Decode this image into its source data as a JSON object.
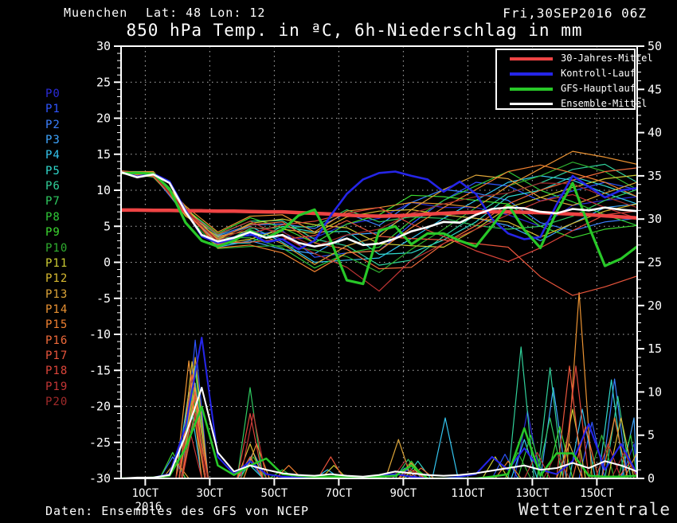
{
  "header": {
    "station": "Muenchen",
    "latlon": "Lat: 48 Lon: 12",
    "run_datetime": "Fri,30SEP2016 06Z",
    "title": "850 hPa Temp. in ªC, 6h-Niederschlag in mm"
  },
  "footer": {
    "source": "Daten: Ensembles des GFS von NCEP",
    "brand": "Wetterzentrale"
  },
  "legend": [
    {
      "label": "30-Jahres-Mittel",
      "color": "#ee4444"
    },
    {
      "label": "Kontroll-Lauf",
      "color": "#2525e8"
    },
    {
      "label": "GFS-Hauptlauf",
      "color": "#28c828"
    },
    {
      "label": "Ensemble-Mittel",
      "color": "#ffffff"
    }
  ],
  "colors": {
    "background": "#000000",
    "frame": "#ffffff",
    "grid": "#b4b4b4"
  },
  "chart_data": {
    "type": "line",
    "title": "850 hPa Temp. in ªC, 6h-Niederschlag in mm",
    "x_axis": {
      "tick_labels": [
        "1OCT",
        "3OCT",
        "5OCT",
        "7OCT",
        "9OCT",
        "11OCT",
        "13OCT",
        "15OCT"
      ],
      "tick_days": [
        0.75,
        2.75,
        4.75,
        6.75,
        8.75,
        10.75,
        12.75,
        14.75
      ],
      "year_label": "2016",
      "range_days": [
        0,
        16
      ],
      "grid": "dotted"
    },
    "y_left": {
      "unit": "Temp ªC",
      "min": -30,
      "max": 30,
      "major_step": 5,
      "minor_step": 1
    },
    "y_right": {
      "unit": "Niederschlag mm",
      "min": 0,
      "max": 50,
      "major_step": 5,
      "minor_step": 1
    },
    "time_days": [
      0,
      0.5,
      1,
      1.5,
      2,
      2.5,
      3,
      3.5,
      4,
      4.5,
      5,
      5.5,
      6,
      6.5,
      7,
      7.5,
      8,
      8.5,
      9,
      9.5,
      10,
      10.5,
      11,
      11.5,
      12,
      12.5,
      13,
      13.5,
      14,
      14.5,
      15,
      15.5,
      16
    ],
    "series_main": [
      {
        "name": "30-Jahres-Mittel",
        "color": "#ee4444",
        "width": 4.5,
        "temp": [
          7.25,
          7.25,
          7.2,
          7.2,
          7.15,
          7.15,
          7.1,
          7.1,
          7.05,
          7.0,
          7.0,
          6.9,
          6.8,
          6.7,
          6.55,
          6.45,
          6.4,
          6.45,
          6.55,
          6.7,
          6.8,
          6.9,
          6.95,
          7.0,
          7.0,
          6.95,
          6.9,
          6.8,
          6.7,
          6.6,
          6.45,
          6.3,
          6.15
        ],
        "precip": null
      },
      {
        "name": "Kontroll-Lauf",
        "color": "#2525e8",
        "width": 2.6,
        "temp": [
          12.5,
          11.9,
          12.3,
          11.2,
          7.2,
          3.6,
          2.7,
          3.2,
          4.0,
          2.8,
          3.2,
          1.8,
          3.0,
          6.5,
          9.5,
          11.5,
          12.4,
          12.6,
          12.0,
          11.5,
          9.8,
          11.2,
          9.5,
          6.0,
          4.0,
          3.2,
          3.5,
          8.0,
          12.0,
          10.5,
          9.0,
          10.0,
          10.3
        ],
        "precip": [
          0,
          0,
          0.1,
          0.5,
          6.0,
          16.3,
          2.5,
          0.5,
          2.0,
          0.5,
          0.2,
          0.1,
          0,
          0.2,
          0,
          0,
          0.3,
          0.5,
          0.2,
          0,
          0,
          0.2,
          0.5,
          2.5,
          1.0,
          3.5,
          1.0,
          0.5,
          2.0,
          6.3,
          1.0,
          4.0,
          0.5
        ]
      },
      {
        "name": "GFS-Hauptlauf",
        "color": "#28c828",
        "width": 3.2,
        "temp": [
          12.4,
          12.4,
          12.3,
          10.2,
          5.5,
          3.0,
          2.2,
          3.0,
          4.4,
          3.4,
          4.5,
          6.5,
          7.3,
          3.0,
          -2.5,
          -3.0,
          4.4,
          5.0,
          2.5,
          4.0,
          4.0,
          3.0,
          2.2,
          5.0,
          8.0,
          4.5,
          2.0,
          7.0,
          11.0,
          5.0,
          -0.5,
          0.5,
          2.2
        ],
        "precip": [
          0,
          0,
          0.1,
          0.3,
          3.5,
          8.3,
          1.5,
          0.4,
          1.5,
          2.3,
          0.5,
          0.3,
          0.2,
          0.2,
          0.2,
          0.1,
          0.2,
          0.3,
          1.5,
          0,
          0,
          0,
          0,
          0.2,
          0.5,
          5.8,
          0.3,
          2.9,
          2.9,
          0.3,
          0.2,
          0.2,
          0.3
        ]
      },
      {
        "name": "Ensemble-Mittel",
        "color": "#ffffff",
        "width": 2.6,
        "temp": [
          12.5,
          11.8,
          12.2,
          11.0,
          7.0,
          3.8,
          2.9,
          3.4,
          4.2,
          3.4,
          3.8,
          2.7,
          2.2,
          2.6,
          3.3,
          2.4,
          2.6,
          3.3,
          4.3,
          4.9,
          5.6,
          5.5,
          6.6,
          7.4,
          7.6,
          7.5,
          7.0,
          6.8,
          7.4,
          7.2,
          7.6,
          7.3,
          7.1
        ],
        "precip": [
          0,
          0.1,
          0.1,
          0.4,
          5.0,
          10.5,
          3.0,
          0.8,
          1.5,
          1.0,
          0.6,
          0.4,
          0.3,
          0.5,
          0.3,
          0.2,
          0.4,
          0.8,
          0.6,
          0.4,
          0.3,
          0.4,
          0.6,
          0.9,
          1.2,
          1.5,
          1.0,
          1.2,
          1.8,
          1.2,
          2.0,
          1.5,
          0.8
        ]
      }
    ],
    "member_time_days": [
      0,
      1,
      2,
      3,
      4,
      5,
      6,
      7,
      8,
      9,
      10,
      11,
      12,
      13,
      14,
      15,
      16
    ],
    "members": [
      {
        "name": "P0",
        "color": "#2b2bd9",
        "temp": [
          12.6,
          12.3,
          7.2,
          2.6,
          4.5,
          3.2,
          3.4,
          5.3,
          6.1,
          8.3,
          7.6,
          7.6,
          6.6,
          5.0,
          7.9,
          8.6,
          9.1
        ],
        "precip_spikes": [
          [
            2.2,
            12
          ],
          [
            9.0,
            1.5
          ],
          [
            12.6,
            7.8
          ],
          [
            15.9,
            4
          ]
        ]
      },
      {
        "name": "P1",
        "color": "#2f55ff",
        "temp": [
          12.4,
          12.0,
          6.5,
          3.3,
          3.7,
          4.4,
          0.7,
          1.3,
          1.6,
          5.3,
          8.6,
          11.1,
          10.6,
          8.5,
          9.9,
          11.1,
          10.1
        ],
        "precip_spikes": [
          [
            2.3,
            16.0
          ],
          [
            4.0,
            2
          ],
          [
            11.9,
            2.8
          ],
          [
            14.6,
            6.5
          ]
        ]
      },
      {
        "name": "P2",
        "color": "#3b80ff",
        "temp": [
          12.6,
          12.5,
          7.5,
          3.7,
          5.2,
          5.3,
          4.7,
          6.8,
          5.1,
          8.3,
          10.1,
          9.6,
          8.6,
          5.5,
          4.4,
          5.6,
          6.1
        ],
        "precip_spikes": [
          [
            1.6,
            2.5
          ],
          [
            2.3,
            11
          ],
          [
            8.8,
            1.2
          ],
          [
            15.3,
            11.5
          ]
        ]
      },
      {
        "name": "P3",
        "color": "#3fa6ff",
        "temp": [
          12.7,
          11.9,
          7.2,
          2.1,
          3.0,
          1.8,
          1.2,
          3.8,
          4.1,
          6.8,
          6.6,
          6.1,
          5.1,
          3.0,
          5.4,
          7.6,
          8.1
        ],
        "precip_spikes": [
          [
            2.2,
            9
          ],
          [
            4.1,
            3
          ],
          [
            13.4,
            10.5
          ],
          [
            15.9,
            7
          ]
        ]
      },
      {
        "name": "P4",
        "color": "#33c4ee",
        "temp": [
          12.5,
          12.4,
          6.6,
          3.5,
          5.0,
          2.8,
          0.0,
          0.3,
          0.6,
          3.3,
          6.1,
          8.6,
          11.1,
          12.0,
          11.4,
          9.6,
          8.1
        ],
        "precip_spikes": [
          [
            2.1,
            10
          ],
          [
            6.4,
            1
          ],
          [
            10.05,
            7
          ],
          [
            12.5,
            4.5
          ],
          [
            14.3,
            8
          ]
        ]
      },
      {
        "name": "P5",
        "color": "#30d8cc",
        "temp": [
          12.3,
          12.3,
          7.6,
          2.6,
          2.7,
          5.0,
          4.2,
          4.3,
          1.1,
          1.3,
          3.1,
          5.6,
          9.1,
          10.0,
          11.9,
          10.6,
          9.1
        ],
        "precip_spikes": [
          [
            2.3,
            13
          ],
          [
            4.0,
            1.5
          ],
          [
            9.2,
            2
          ],
          [
            15.2,
            11.4
          ]
        ]
      },
      {
        "name": "P6",
        "color": "#30d09a",
        "temp": [
          12.6,
          12.6,
          6.8,
          3.8,
          5.7,
          5.8,
          3.2,
          2.3,
          -0.4,
          0.3,
          3.6,
          6.6,
          9.6,
          11.0,
          12.9,
          13.6,
          11.1
        ],
        "precip_spikes": [
          [
            2.2,
            9.5
          ],
          [
            12.4,
            15.2
          ],
          [
            13.3,
            12.8
          ],
          [
            15.4,
            9.5
          ]
        ]
      },
      {
        "name": "P7",
        "color": "#2fca60",
        "temp": [
          12.5,
          11.8,
          7.3,
          2.3,
          4.7,
          4.8,
          5.0,
          7.3,
          5.6,
          6.3,
          6.1,
          5.1,
          4.6,
          5.0,
          6.4,
          8.6,
          10.1
        ],
        "precip_spikes": [
          [
            2.3,
            8
          ],
          [
            4.0,
            10.5
          ],
          [
            8.9,
            2.2
          ],
          [
            13.3,
            7
          ]
        ]
      },
      {
        "name": "P8",
        "color": "#2fca38",
        "temp": [
          12.4,
          12.4,
          6.5,
          3.4,
          3.4,
          2.0,
          -0.8,
          1.3,
          2.1,
          5.8,
          8.6,
          10.6,
          12.6,
          10.0,
          8.4,
          6.6,
          5.1
        ],
        "precip_spikes": [
          [
            2.2,
            11
          ],
          [
            5.0,
            1
          ],
          [
            12.7,
            5
          ],
          [
            15.8,
            5
          ]
        ]
      },
      {
        "name": "P9",
        "color": "#3cd830",
        "temp": [
          12.7,
          12.2,
          7.4,
          4.0,
          6.2,
          4.8,
          2.7,
          5.3,
          6.6,
          9.3,
          9.1,
          8.6,
          8.1,
          5.0,
          3.4,
          4.6,
          5.1
        ],
        "precip_spikes": [
          [
            1.6,
            3
          ],
          [
            2.3,
            12.5
          ],
          [
            9.0,
            2
          ],
          [
            13.6,
            6
          ]
        ]
      },
      {
        "name": "P10",
        "color": "#2fae2f",
        "temp": [
          12.5,
          12.1,
          6.7,
          1.9,
          2.2,
          2.3,
          1.7,
          0.8,
          -1.4,
          1.8,
          4.6,
          7.6,
          10.6,
          12.0,
          13.9,
          12.6,
          10.1
        ],
        "precip_spikes": [
          [
            2.2,
            8.5
          ],
          [
            4.1,
            2.5
          ],
          [
            12.3,
            3
          ],
          [
            14.9,
            5
          ]
        ]
      },
      {
        "name": "P11",
        "color": "#cccc33",
        "temp": [
          12.6,
          12.5,
          7.6,
          3.1,
          5.4,
          6.0,
          5.2,
          4.8,
          2.6,
          2.3,
          2.1,
          4.6,
          7.6,
          9.0,
          10.4,
          11.6,
          12.1
        ],
        "precip_spikes": [
          [
            2.3,
            10.5
          ],
          [
            6.6,
            1.5
          ],
          [
            11.6,
            2.5
          ],
          [
            14.0,
            8
          ]
        ]
      },
      {
        "name": "P12",
        "color": "#d9bb30",
        "temp": [
          12.3,
          11.9,
          7.1,
          2.5,
          3.2,
          4.6,
          4.0,
          6.3,
          7.1,
          7.3,
          6.6,
          6.1,
          5.6,
          3.5,
          5.4,
          7.1,
          8.1
        ],
        "precip_spikes": [
          [
            2.2,
            13.5
          ],
          [
            4.0,
            4
          ],
          [
            9.1,
            1
          ],
          [
            15.5,
            7
          ]
        ]
      },
      {
        "name": "P13",
        "color": "#dda538",
        "temp": [
          12.6,
          12.4,
          6.4,
          3.6,
          4.4,
          2.6,
          -0.3,
          2.3,
          3.6,
          7.3,
          10.1,
          12.1,
          11.6,
          9.0,
          7.9,
          9.6,
          11.1
        ],
        "precip_spikes": [
          [
            1.7,
            2
          ],
          [
            2.3,
            14
          ],
          [
            8.6,
            4.5
          ],
          [
            13.9,
            4
          ]
        ]
      },
      {
        "name": "P14",
        "color": "#ea9232",
        "temp": [
          12.5,
          12.6,
          7.8,
          4.2,
          6.4,
          6.6,
          4.2,
          7.1,
          7.6,
          8.3,
          8.1,
          7.6,
          10.6,
          13.0,
          15.4,
          14.6,
          13.6
        ],
        "precip_spikes": [
          [
            2.1,
            13.6
          ],
          [
            4.2,
            4
          ],
          [
            9.0,
            1.8
          ],
          [
            14.2,
            21.5
          ],
          [
            16,
            3
          ]
        ]
      },
      {
        "name": "P15",
        "color": "#f08030",
        "temp": [
          12.4,
          12.0,
          7.3,
          2.0,
          2.4,
          1.3,
          -1.3,
          1.3,
          1.6,
          4.8,
          7.6,
          10.1,
          12.6,
          13.5,
          12.4,
          11.1,
          9.1
        ],
        "precip_spikes": [
          [
            2.2,
            9
          ],
          [
            5.2,
            1.5
          ],
          [
            12.0,
            2
          ],
          [
            15.3,
            7
          ]
        ]
      },
      {
        "name": "P16",
        "color": "#f06a3a",
        "temp": [
          12.7,
          12.3,
          6.6,
          3.3,
          5.2,
          5.6,
          2.7,
          1.8,
          -0.9,
          -0.7,
          2.6,
          5.1,
          8.1,
          10.0,
          11.4,
          12.6,
          13.1
        ],
        "precip_spikes": [
          [
            2.3,
            10
          ],
          [
            4.0,
            2.5
          ],
          [
            9.3,
            1.2
          ],
          [
            14.4,
            6
          ]
        ]
      },
      {
        "name": "P17",
        "color": "#e9553c",
        "temp": [
          12.5,
          11.9,
          7.5,
          2.7,
          2.8,
          3.2,
          3.7,
          5.8,
          3.6,
          3.3,
          3.1,
          2.6,
          2.1,
          -2.0,
          -4.6,
          -3.4,
          -1.9
        ],
        "precip_spikes": [
          [
            2.2,
            12
          ],
          [
            6.5,
            2.5
          ],
          [
            13.9,
            13
          ],
          [
            15.8,
            2
          ]
        ]
      },
      {
        "name": "P18",
        "color": "#dc453a",
        "temp": [
          12.4,
          12.2,
          6.9,
          2.4,
          4.0,
          5.2,
          5.7,
          6.8,
          7.6,
          5.3,
          3.6,
          1.6,
          0.1,
          2.0,
          4.4,
          6.6,
          7.1
        ],
        "precip_spikes": [
          [
            2.3,
            7.5
          ],
          [
            4.0,
            7.5
          ],
          [
            9.0,
            1
          ],
          [
            14.1,
            13
          ]
        ]
      },
      {
        "name": "P19",
        "color": "#c23535",
        "temp": [
          12.6,
          12.1,
          7.0,
          3.9,
          5.7,
          3.6,
          1.2,
          -0.7,
          -4.0,
          0.3,
          2.6,
          4.6,
          6.6,
          8.5,
          9.4,
          7.6,
          6.1
        ],
        "precip_spikes": [
          [
            2.1,
            6
          ],
          [
            4.1,
            7.5
          ],
          [
            12.9,
            3
          ],
          [
            15.1,
            4
          ]
        ]
      },
      {
        "name": "P20",
        "color": "#a12a2a",
        "temp": [
          12.5,
          12.3,
          7.1,
          3.0,
          4.9,
          4.2,
          2.2,
          3.8,
          4.6,
          6.8,
          8.1,
          9.1,
          9.6,
          11.0,
          10.9,
          9.1,
          7.6
        ],
        "precip_spikes": [
          [
            2.25,
            8
          ],
          [
            8.8,
            2
          ],
          [
            13.5,
            3
          ],
          [
            15.6,
            3
          ]
        ]
      }
    ]
  }
}
